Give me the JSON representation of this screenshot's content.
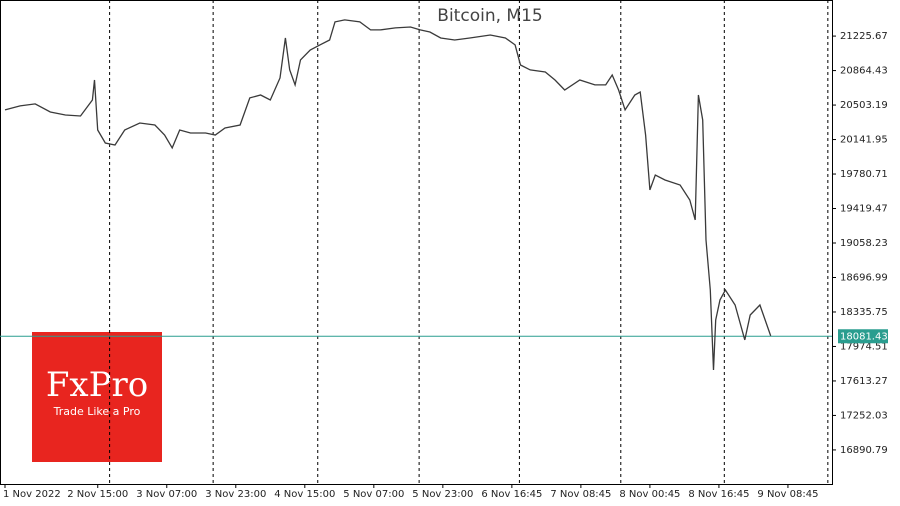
{
  "chart_data": {
    "type": "line",
    "title": "Bitcoin, M15",
    "x": [
      0,
      14,
      28,
      42,
      56,
      70,
      81,
      83,
      86,
      93,
      102,
      111,
      125,
      139,
      148,
      155,
      162,
      172,
      186,
      195,
      204,
      218,
      227,
      237,
      246,
      255,
      260,
      264,
      269,
      274,
      283,
      292,
      301,
      306,
      315,
      329,
      339,
      348,
      362,
      376,
      385,
      394,
      404,
      417,
      431,
      450,
      464,
      473,
      478,
      487,
      501,
      510,
      519,
      533,
      547,
      557,
      563,
      569,
      575,
      584,
      589,
      594,
      598,
      603,
      612,
      626,
      635,
      640,
      643,
      647,
      650,
      654,
      657,
      659,
      663,
      668,
      677,
      686,
      691,
      700,
      710
    ],
    "series": [
      {
        "color": "#3a3a3a",
        "values": [
          20452,
          20494,
          20515,
          20431,
          20399,
          20389,
          20556,
          20766,
          20242,
          20106,
          20085,
          20242,
          20315,
          20294,
          20190,
          20054,
          20242,
          20211,
          20211,
          20190,
          20263,
          20294,
          20578,
          20609,
          20556,
          20787,
          21206,
          20871,
          20714,
          20976,
          21080,
          21133,
          21185,
          21374,
          21395,
          21374,
          21290,
          21290,
          21311,
          21321,
          21290,
          21269,
          21206,
          21185,
          21206,
          21237,
          21206,
          21133,
          20923,
          20871,
          20850,
          20766,
          20661,
          20766,
          20714,
          20714,
          20818,
          20661,
          20452,
          20609,
          20640,
          20190,
          19614,
          19771,
          19718,
          19666,
          19509,
          19300,
          20609,
          20347,
          19090,
          18566,
          17728,
          18252,
          18462,
          18566,
          18409,
          18043,
          18304,
          18409,
          18085
        ]
      }
    ],
    "xlim": [
      0,
      765
    ],
    "xticks": [
      {
        "value": 0,
        "label": "1 Nov 2022"
      },
      {
        "value": 86,
        "label": "2 Nov 15:00"
      },
      {
        "value": 150,
        "label": "3 Nov 07:00"
      },
      {
        "value": 214,
        "label": "3 Nov 23:00"
      },
      {
        "value": 278,
        "label": "4 Nov 15:00"
      },
      {
        "value": 342,
        "label": "5 Nov 07:00"
      },
      {
        "value": 406,
        "label": "5 Nov 23:00"
      },
      {
        "value": 470,
        "label": "6 Nov 16:45"
      },
      {
        "value": 534,
        "label": "7 Nov 08:45"
      },
      {
        "value": 598,
        "label": "8 Nov 00:45"
      },
      {
        "value": 662,
        "label": "8 Nov 16:45"
      },
      {
        "value": 726,
        "label": "9 Nov 08:45"
      }
    ],
    "day_separators": [
      97,
      193,
      290,
      384,
      477,
      571,
      667,
      763
    ],
    "ylim": [
      16533.8,
      21603.7
    ],
    "yticks": [
      21225.67,
      20864.43,
      20503.19,
      20141.95,
      19780.71,
      19419.47,
      19058.23,
      18696.99,
      18335.75,
      17974.51,
      17613.27,
      17252.03,
      16890.79
    ],
    "last_price": 18081.43,
    "last_price_color": "#2a9d8f",
    "watermark": {
      "title": "FxPro",
      "subtitle": "Trade Like a Pro",
      "color": "#e8251f"
    }
  }
}
